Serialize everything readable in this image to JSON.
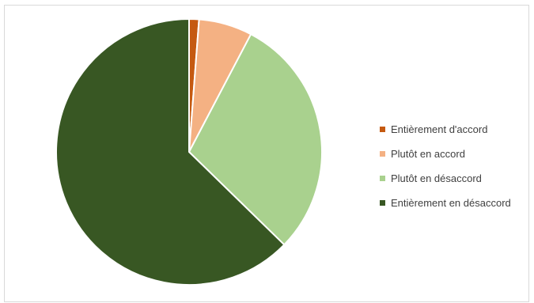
{
  "chart_data": {
    "type": "pie",
    "categories": [
      "Entièrement d'accord",
      "Plutôt en accord",
      "Plutôt en désaccord",
      "Entièrement en désaccord"
    ],
    "values": [
      1.2,
      6.5,
      29.6,
      62.7
    ],
    "colors": [
      "#c55a11",
      "#f4b183",
      "#a9d18e",
      "#385723"
    ],
    "legend_position": "right",
    "start_angle": "top",
    "direction": "clockwise"
  }
}
